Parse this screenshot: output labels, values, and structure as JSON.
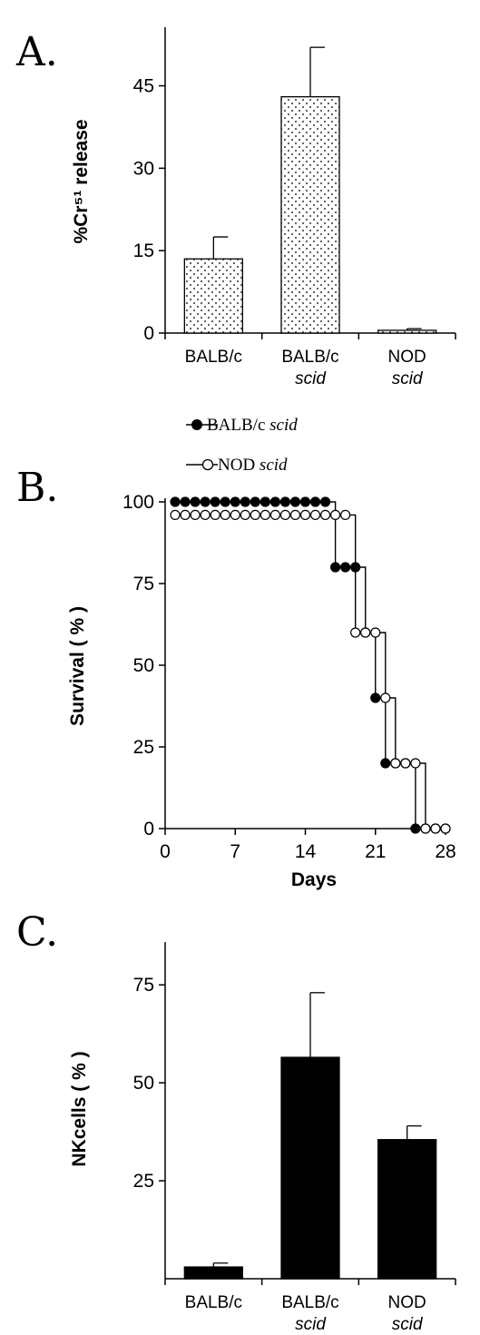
{
  "chart_data": [
    {
      "panel": "A.",
      "type": "bar",
      "ylabel": "%Cr⁵¹ release",
      "xlabel": "",
      "ylim": [
        0,
        55
      ],
      "yticks": [
        0,
        15,
        30,
        45
      ],
      "bar_fill": "dotted",
      "categories": [
        {
          "line1": "BALB/c",
          "line2": ""
        },
        {
          "line1": "BALB/c",
          "line2": "scid"
        },
        {
          "line1": "NOD",
          "line2": "scid"
        }
      ],
      "values": [
        13.5,
        43,
        0.5
      ],
      "errors": [
        4,
        9,
        0.3
      ]
    },
    {
      "panel": "B.",
      "type": "line",
      "ylabel": "Survival ( % )",
      "xlabel": "Days",
      "xlim": [
        0,
        28
      ],
      "ylim": [
        0,
        100
      ],
      "xticks": [
        0,
        7,
        14,
        21,
        28
      ],
      "yticks": [
        0,
        25,
        50,
        75,
        100
      ],
      "series": [
        {
          "name": "BALB/c",
          "name_italic": "scid",
          "marker": "filled",
          "x": [
            1,
            2,
            3,
            4,
            5,
            6,
            7,
            8,
            9,
            10,
            11,
            12,
            13,
            14,
            15,
            16,
            17,
            18,
            19,
            20,
            21,
            22,
            23,
            24,
            25,
            26,
            27,
            28
          ],
          "y": [
            100,
            100,
            100,
            100,
            100,
            100,
            100,
            100,
            100,
            100,
            100,
            100,
            100,
            100,
            100,
            100,
            80,
            80,
            80,
            60,
            40,
            20,
            20,
            20,
            0,
            0,
            0,
            0
          ]
        },
        {
          "name": "NOD",
          "name_italic": "scid",
          "marker": "open",
          "x": [
            1,
            2,
            3,
            4,
            5,
            6,
            7,
            8,
            9,
            10,
            11,
            12,
            13,
            14,
            15,
            16,
            17,
            18,
            19,
            20,
            21,
            22,
            23,
            24,
            25,
            26,
            27,
            28
          ],
          "y": [
            96,
            96,
            96,
            96,
            96,
            96,
            96,
            96,
            96,
            96,
            96,
            96,
            96,
            96,
            96,
            96,
            96,
            96,
            60,
            60,
            60,
            40,
            20,
            20,
            20,
            0,
            0,
            0
          ]
        }
      ]
    },
    {
      "panel": "C.",
      "type": "bar",
      "ylabel": "NKcells ( % )",
      "xlabel": "",
      "ylim": [
        0,
        85
      ],
      "yticks": [
        25,
        50,
        75
      ],
      "bar_fill": "solid",
      "categories": [
        {
          "line1": "BALB/c",
          "line2": ""
        },
        {
          "line1": "BALB/c",
          "line2": "scid"
        },
        {
          "line1": "NOD",
          "line2": "scid"
        }
      ],
      "values": [
        3,
        56.5,
        35.5
      ],
      "errors": [
        1,
        16.5,
        3.5
      ]
    }
  ]
}
